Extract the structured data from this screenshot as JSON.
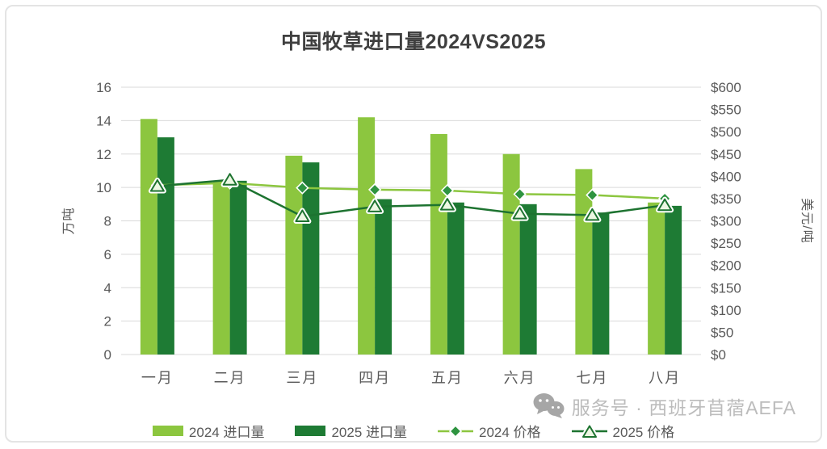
{
  "page": {
    "title": "中国牧草进口量2024VS2025"
  },
  "watermark": {
    "icon": "wechat-icon",
    "text": "服务号 · 西班牙苜蓿AEFA"
  },
  "chart_data": {
    "type": "combo",
    "title": "中国牧草进口量2024VS2025",
    "categories": [
      "一月",
      "二月",
      "三月",
      "四月",
      "五月",
      "六月",
      "七月",
      "八月"
    ],
    "bar_series": [
      {
        "name": "2024 进口量",
        "axis": "left",
        "color": "#8CC63F",
        "values": [
          14.1,
          10.4,
          11.9,
          14.2,
          13.2,
          12.0,
          11.1,
          9.1
        ]
      },
      {
        "name": "2025 进口量",
        "axis": "left",
        "color": "#1E7B34",
        "values": [
          13.0,
          10.4,
          11.5,
          9.3,
          9.1,
          9.0,
          8.5,
          8.9
        ]
      }
    ],
    "line_series": [
      {
        "name": "2024 价格",
        "axis": "right",
        "color": "#8CC63F",
        "marker": "diamond",
        "marker_fill": "#2E9440",
        "marker_stroke": "#FFFFFF",
        "values": [
          380,
          385,
          374,
          370,
          368,
          360,
          358,
          350
        ]
      },
      {
        "name": "2025 价格",
        "axis": "right",
        "color": "#1D7330",
        "marker": "triangle",
        "marker_fill": "#EDF7E3",
        "marker_stroke": "#1D7330",
        "values": [
          378,
          392,
          310,
          332,
          336,
          316,
          313,
          335
        ]
      }
    ],
    "left_axis": {
      "label": "万吨",
      "min": 0,
      "max": 16,
      "tick_step": 2,
      "tick_labels": [
        "0",
        "2",
        "4",
        "6",
        "8",
        "10",
        "12",
        "14",
        "16"
      ]
    },
    "right_axis": {
      "label": "美元/吨",
      "min": 0,
      "max": 600,
      "tick_step": 50,
      "prefix": "$",
      "tick_labels": [
        "$0",
        "$50",
        "$100",
        "$150",
        "$200",
        "$250",
        "$300",
        "$350",
        "$400",
        "$450",
        "$500",
        "$550",
        "$600"
      ]
    },
    "grid": true,
    "grid_color": "#D9D9D9",
    "tick_color": "#595959",
    "legend_position": "bottom"
  }
}
